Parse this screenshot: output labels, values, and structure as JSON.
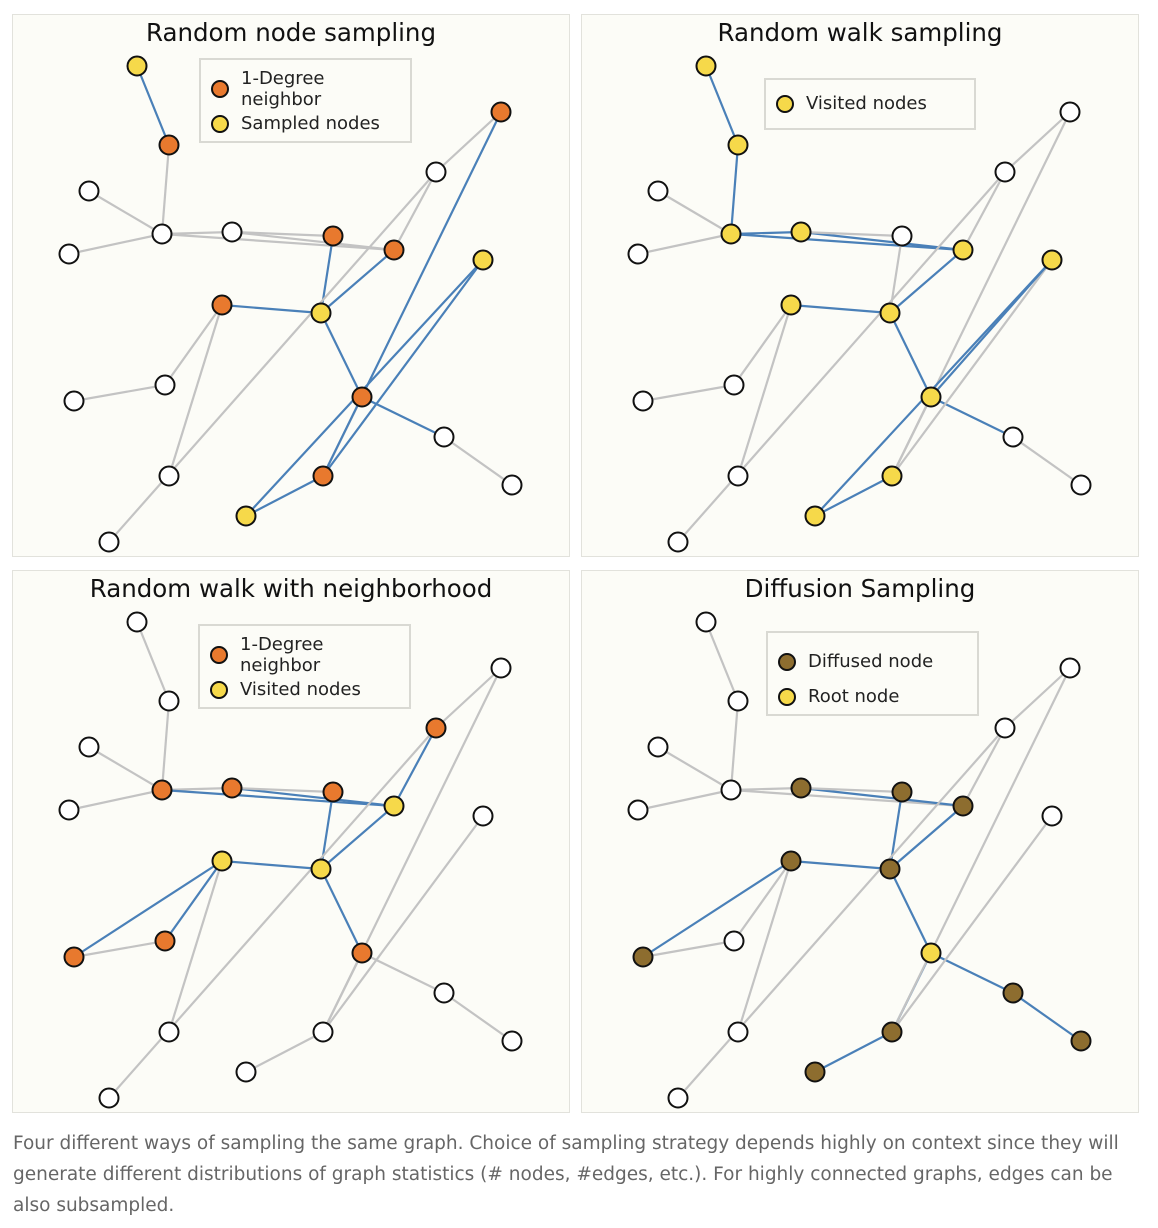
{
  "colors": {
    "orange": "#e8792e",
    "yellow": "#f6d94a",
    "brown": "#8d6d2f",
    "white": "#ffffff",
    "blue_edge": "#4a80b8",
    "gray_edge": "#c3c3c3"
  },
  "graph": {
    "nodes": [
      "A",
      "B",
      "C",
      "D",
      "E",
      "F",
      "G",
      "H",
      "I",
      "J",
      "K",
      "L",
      "M",
      "N",
      "O",
      "P",
      "Q",
      "R",
      "S",
      "T",
      "U",
      "V"
    ],
    "edges": [
      [
        "A",
        "B"
      ],
      [
        "B",
        "E"
      ],
      [
        "C",
        "E"
      ],
      [
        "D",
        "E"
      ],
      [
        "E",
        "F"
      ],
      [
        "E",
        "I"
      ],
      [
        "F",
        "I"
      ],
      [
        "F",
        "G"
      ],
      [
        "G",
        "J"
      ],
      [
        "I",
        "J"
      ],
      [
        "J",
        "H"
      ],
      [
        "H",
        "K"
      ],
      [
        "K",
        "L"
      ],
      [
        "H",
        "M"
      ],
      [
        "I",
        "O"
      ],
      [
        "O",
        "N"
      ],
      [
        "O",
        "P"
      ],
      [
        "J",
        "Q"
      ],
      [
        "Q",
        "R"
      ],
      [
        "R",
        "S"
      ],
      [
        "Q",
        "T"
      ],
      [
        "T",
        "V"
      ],
      [
        "T",
        "U"
      ],
      [
        "P",
        "T"
      ]
    ]
  },
  "panels": [
    {
      "title": "Random node sampling",
      "legend": [
        {
          "label": "1-Degree neighbor",
          "color": "orange"
        },
        {
          "label": "Sampled nodes",
          "color": "yellow"
        }
      ],
      "node_colors": {
        "A": "yellow",
        "B": "orange",
        "G": "orange",
        "H": "orange",
        "I": "orange",
        "J": "yellow",
        "P": "orange",
        "Q": "orange",
        "T": "orange",
        "U": "yellow",
        "V": "yellow"
      },
      "blue_edges": [
        [
          "A",
          "B"
        ],
        [
          "G",
          "J"
        ],
        [
          "J",
          "H"
        ],
        [
          "I",
          "J"
        ],
        [
          "J",
          "Q"
        ],
        [
          "P",
          "T"
        ],
        [
          "T",
          "U"
        ],
        [
          "U",
          "V"
        ],
        [
          "Q",
          "R"
        ],
        [
          "T",
          "V"
        ]
      ]
    },
    {
      "title": "Random walk sampling",
      "legend": [
        {
          "label": "Visited nodes",
          "color": "yellow"
        }
      ],
      "node_colors": {
        "A": "yellow",
        "B": "yellow",
        "E": "yellow",
        "F": "yellow",
        "H": "yellow",
        "I": "yellow",
        "J": "yellow",
        "Q": "yellow",
        "T": "yellow",
        "U": "yellow",
        "V": "yellow"
      },
      "blue_edges": [
        [
          "A",
          "B"
        ],
        [
          "B",
          "E"
        ],
        [
          "E",
          "F"
        ],
        [
          "E",
          "I"
        ],
        [
          "F",
          "I"
        ],
        [
          "I",
          "J"
        ],
        [
          "J",
          "H"
        ],
        [
          "J",
          "Q"
        ],
        [
          "Q",
          "R"
        ],
        [
          "T",
          "U"
        ],
        [
          "U",
          "V"
        ],
        [
          "Q",
          "V"
        ]
      ]
    },
    {
      "title": "Random walk with neighborhood",
      "legend": [
        {
          "label": "1-Degree neighbor",
          "color": "orange"
        },
        {
          "label": "Visited nodes",
          "color": "yellow"
        }
      ],
      "node_colors": {
        "E": "orange",
        "F": "orange",
        "G": "orange",
        "H": "yellow",
        "I": "yellow",
        "J": "yellow",
        "K": "orange",
        "L": "orange",
        "O": "orange",
        "Q": "orange"
      },
      "blue_edges": [
        [
          "E",
          "I"
        ],
        [
          "F",
          "I"
        ],
        [
          "I",
          "J"
        ],
        [
          "G",
          "J"
        ],
        [
          "J",
          "H"
        ],
        [
          "H",
          "K"
        ],
        [
          "H",
          "L"
        ],
        [
          "I",
          "O"
        ],
        [
          "J",
          "Q"
        ]
      ]
    },
    {
      "title": "Diffusion Sampling",
      "legend": [
        {
          "label": "Diffused node",
          "color": "brown"
        },
        {
          "label": "Root node",
          "color": "yellow"
        }
      ],
      "node_colors": {
        "F": "brown",
        "G": "brown",
        "I": "brown",
        "J": "brown",
        "H": "brown",
        "L": "brown",
        "Q": "yellow",
        "R": "brown",
        "S": "brown",
        "T": "brown",
        "U": "brown"
      },
      "blue_edges": [
        [
          "F",
          "I"
        ],
        [
          "I",
          "J"
        ],
        [
          "G",
          "J"
        ],
        [
          "J",
          "H"
        ],
        [
          "H",
          "L"
        ],
        [
          "J",
          "Q"
        ],
        [
          "Q",
          "R"
        ],
        [
          "R",
          "S"
        ],
        [
          "Q",
          "T"
        ],
        [
          "T",
          "U"
        ]
      ]
    }
  ],
  "caption": "Four different ways of sampling the same graph. Choice of sampling strategy depends highly on context since they will generate different distributions of graph statistics (# nodes, #edges, etc.). For highly connected graphs, edges can be also subsampled."
}
